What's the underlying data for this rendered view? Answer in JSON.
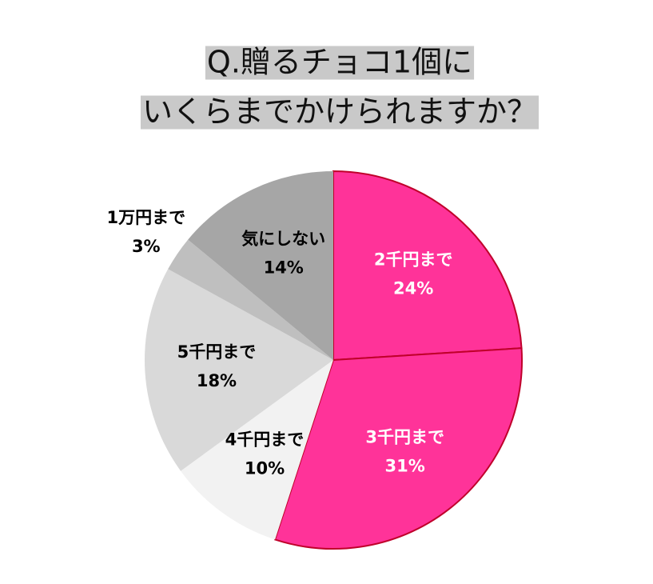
{
  "chart_data": {
    "type": "pie",
    "title": [
      "Q.贈るチョコ1個に",
      "いくらまでかけられますか？"
    ],
    "categories": [
      "2千円まで",
      "3千円まで",
      "4千円まで",
      "5千円まで",
      "1万円まで",
      "気にしない"
    ],
    "values": [
      24,
      31,
      10,
      18,
      3,
      14
    ],
    "value_labels": [
      "24%",
      "31%",
      "10%",
      "18%",
      "3%",
      "14%"
    ],
    "colors": [
      "#ff3399",
      "#ff3399",
      "#f2f2f2",
      "#d9d9d9",
      "#bfbfbf",
      "#a6a6a6"
    ],
    "edge_colors": [
      "#c0002a",
      "#c0002a",
      null,
      null,
      null,
      null
    ],
    "label_colors": [
      "#ffffff",
      "#ffffff",
      "#000000",
      "#000000",
      "#000000",
      "#000000"
    ]
  }
}
